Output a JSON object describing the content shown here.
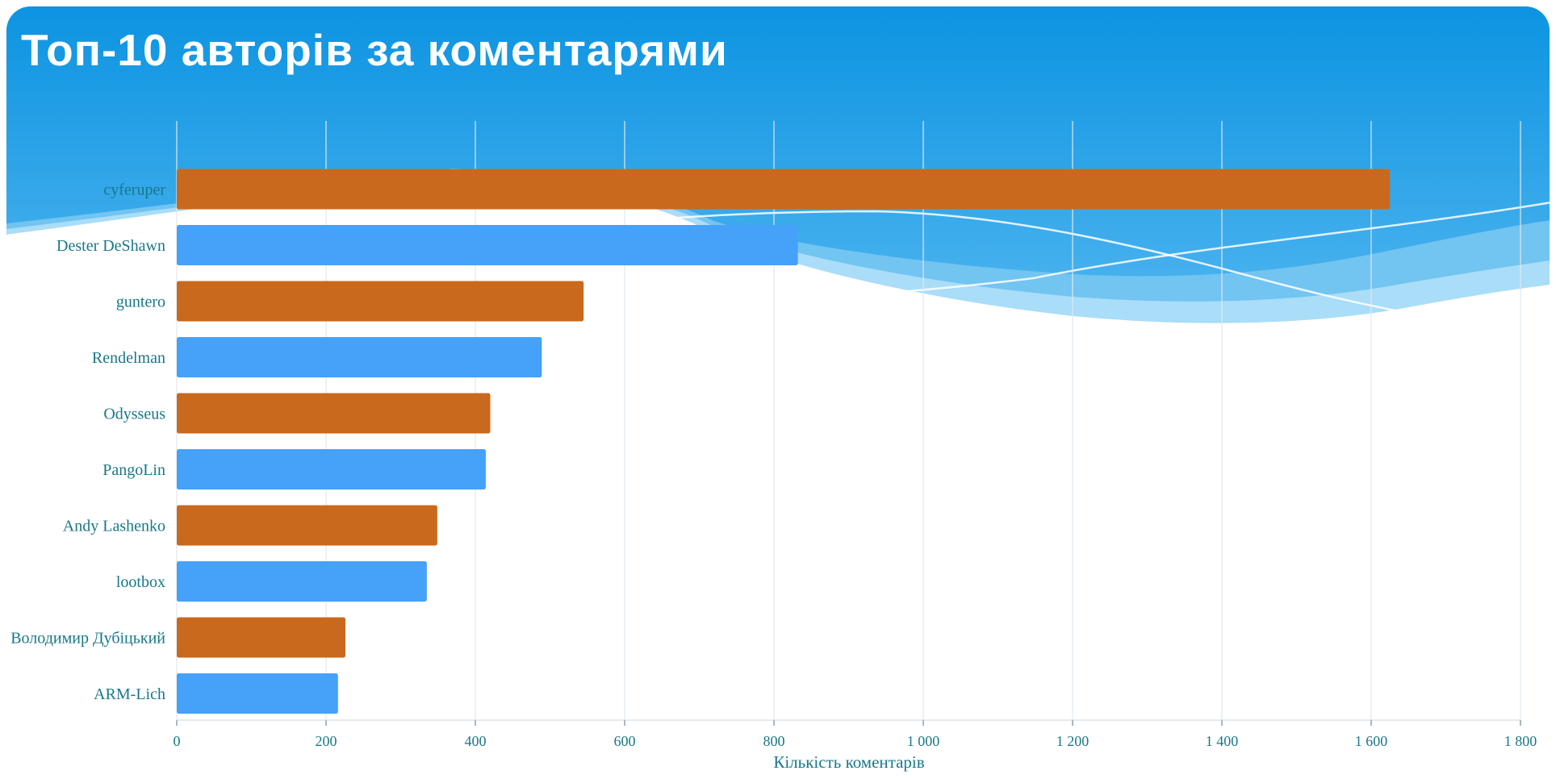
{
  "title": "Топ-10 авторів за коментарями",
  "chart_data": {
    "type": "bar",
    "orientation": "horizontal",
    "title": "Топ-10 авторів за коментарями",
    "categories": [
      "cyferuper",
      "Dester DeShawn",
      "guntero",
      "Rendelman",
      "Odysseus",
      "PangoLin",
      "Andy Lashenko",
      "lootbox",
      "Володимир Дубіцький",
      "ARM-Lich"
    ],
    "values": [
      1625,
      832,
      545,
      489,
      420,
      414,
      349,
      335,
      226,
      216
    ],
    "xlabel": "Кількість коментарів",
    "ylabel": "",
    "xlim": [
      0,
      1800
    ],
    "xticks": [
      0,
      200,
      400,
      600,
      800,
      1000,
      1200,
      1400,
      1600,
      1800
    ],
    "xtick_labels": [
      "0",
      "200",
      "400",
      "600",
      "800",
      "1 000",
      "1 200",
      "1 400",
      "1 600",
      "1 800"
    ],
    "grid": true,
    "legend": false,
    "bar_color_odd_rows": "#c9691d",
    "bar_color_even_rows": "#46a1f8"
  },
  "colors": {
    "header_gradient_top": "#0b93e1",
    "header_gradient_bottom": "#4fb5ef",
    "wave_mid": "#72c4f1",
    "wave_light": "#a9ddf8",
    "wave_line": "#ffffff",
    "label_text": "#187888",
    "grid_line": "#dfe9f2",
    "axis_line": "#dde4ea",
    "tick_mark": "#8fa0ad",
    "title_text": "#ffffff"
  }
}
